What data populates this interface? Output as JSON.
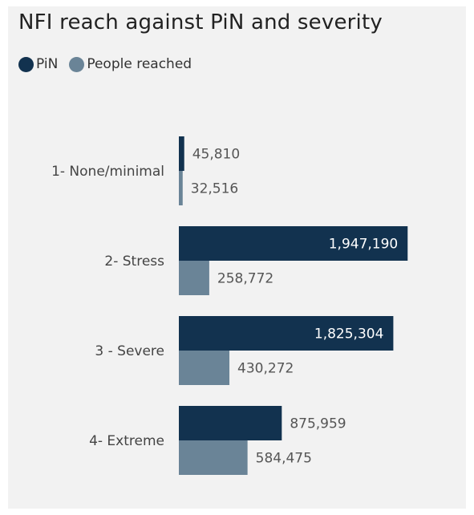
{
  "chart_data": {
    "type": "bar",
    "orientation": "horizontal",
    "title": "NFI reach against PiN and severity",
    "legend_position": "top-left",
    "grid": false,
    "xlim": [
      0,
      2000000
    ],
    "categories": [
      "1- None/minimal",
      "2- Stress",
      "3 - Severe",
      "4- Extreme"
    ],
    "series": [
      {
        "name": "PiN",
        "color": "#12324f",
        "values": [
          45810,
          1947190,
          1825304,
          875959
        ],
        "labels": [
          "45,810",
          "1,947,190",
          "1,825,304",
          "875,959"
        ]
      },
      {
        "name": "People reached",
        "color": "#6a8497",
        "values": [
          32516,
          258772,
          430272,
          584475
        ],
        "labels": [
          "32,516",
          "258,772",
          "430,272",
          "584,475"
        ]
      }
    ]
  }
}
